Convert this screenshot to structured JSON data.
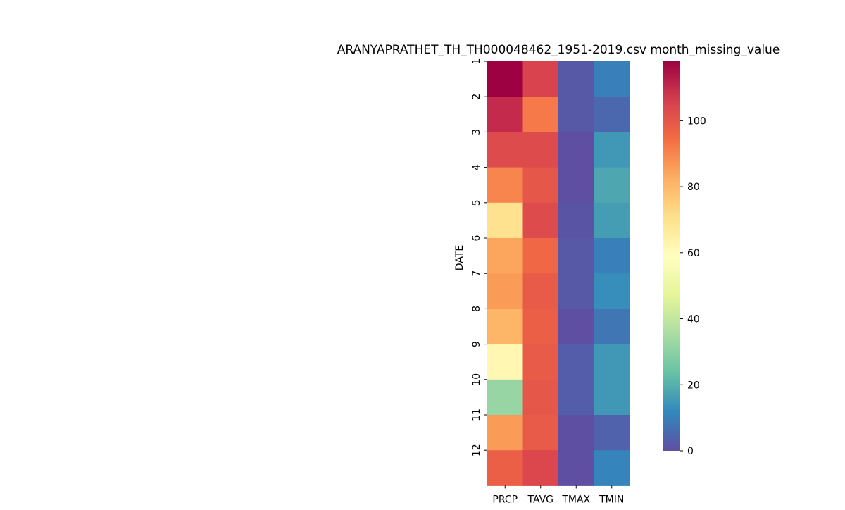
{
  "chart_data": {
    "type": "heatmap",
    "title": "ARANYAPRATHET_TH_TH000048462_1951-2019.csv month_missing_value",
    "xlabel": "",
    "ylabel": "DATE",
    "x_categories": [
      "PRCP",
      "TAVG",
      "TMAX",
      "TMIN"
    ],
    "y_categories": [
      "1",
      "2",
      "3",
      "4",
      "5",
      "6",
      "7",
      "8",
      "9",
      "10",
      "11",
      "12"
    ],
    "values": [
      [
        118,
        105,
        2,
        10
      ],
      [
        110,
        92,
        2,
        5
      ],
      [
        103,
        103,
        0,
        15
      ],
      [
        90,
        100,
        0,
        18
      ],
      [
        70,
        103,
        1,
        16
      ],
      [
        84,
        96,
        2,
        10
      ],
      [
        86,
        99,
        2,
        13
      ],
      [
        81,
        98,
        0,
        8
      ],
      [
        62,
        99,
        3,
        15
      ],
      [
        32,
        100,
        3,
        15
      ],
      [
        86,
        99,
        0,
        4
      ],
      [
        98,
        104,
        0,
        11
      ]
    ],
    "colorbar": {
      "colormap": "Spectral_r",
      "range": [
        0,
        118
      ],
      "ticks": [
        "0",
        "20",
        "40",
        "60",
        "80",
        "100"
      ]
    },
    "grid": false,
    "legend": "colorbar-right"
  }
}
